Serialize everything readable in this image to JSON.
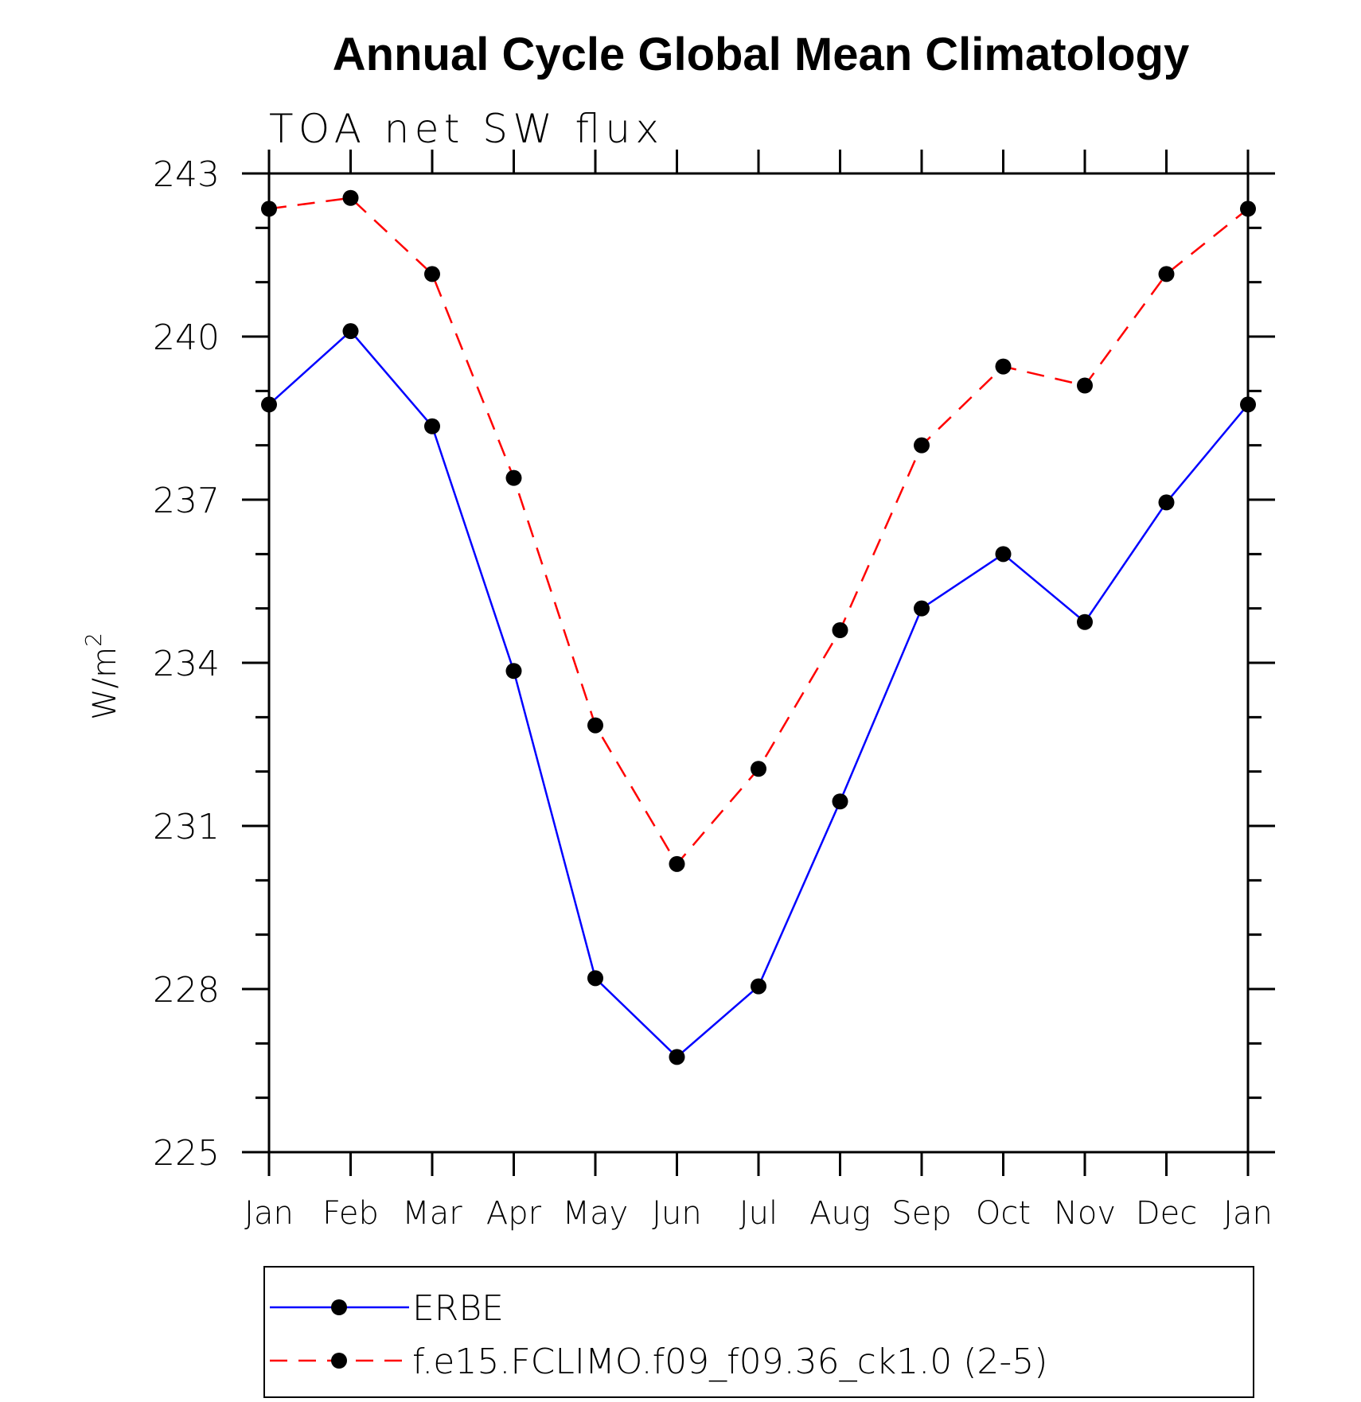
{
  "chart_data": {
    "type": "line",
    "title": "Annual Cycle Global Mean Climatology",
    "subtitle": "TOA net SW flux",
    "ylabel": "W/m",
    "ylabel_superscript": "2",
    "xlabel": "",
    "categories": [
      "Jan",
      "Feb",
      "Mar",
      "Apr",
      "May",
      "Jun",
      "Jul",
      "Aug",
      "Sep",
      "Oct",
      "Nov",
      "Dec",
      "Jan"
    ],
    "ylim": [
      225,
      243
    ],
    "yticks": [
      "243",
      "240",
      "237",
      "234",
      "231",
      "228",
      "225"
    ],
    "grid": false,
    "legend_position": "bottom",
    "series": [
      {
        "name": "ERBE",
        "color": "#0000ff",
        "line_style": "solid",
        "marker": "filled-circle",
        "values": [
          238.75,
          240.1,
          238.35,
          233.85,
          228.2,
          226.75,
          228.05,
          231.45,
          235.0,
          236.0,
          234.75,
          236.95,
          238.75
        ]
      },
      {
        "name": "f.e15.FCLIMO.f09_f09.36_ck1.0 (2-5)",
        "color": "#ff0000",
        "line_style": "dashed",
        "marker": "filled-circle",
        "values": [
          242.35,
          242.55,
          241.15,
          237.4,
          232.85,
          230.3,
          232.05,
          234.6,
          238.0,
          239.45,
          239.1,
          241.15,
          242.35
        ]
      }
    ]
  }
}
